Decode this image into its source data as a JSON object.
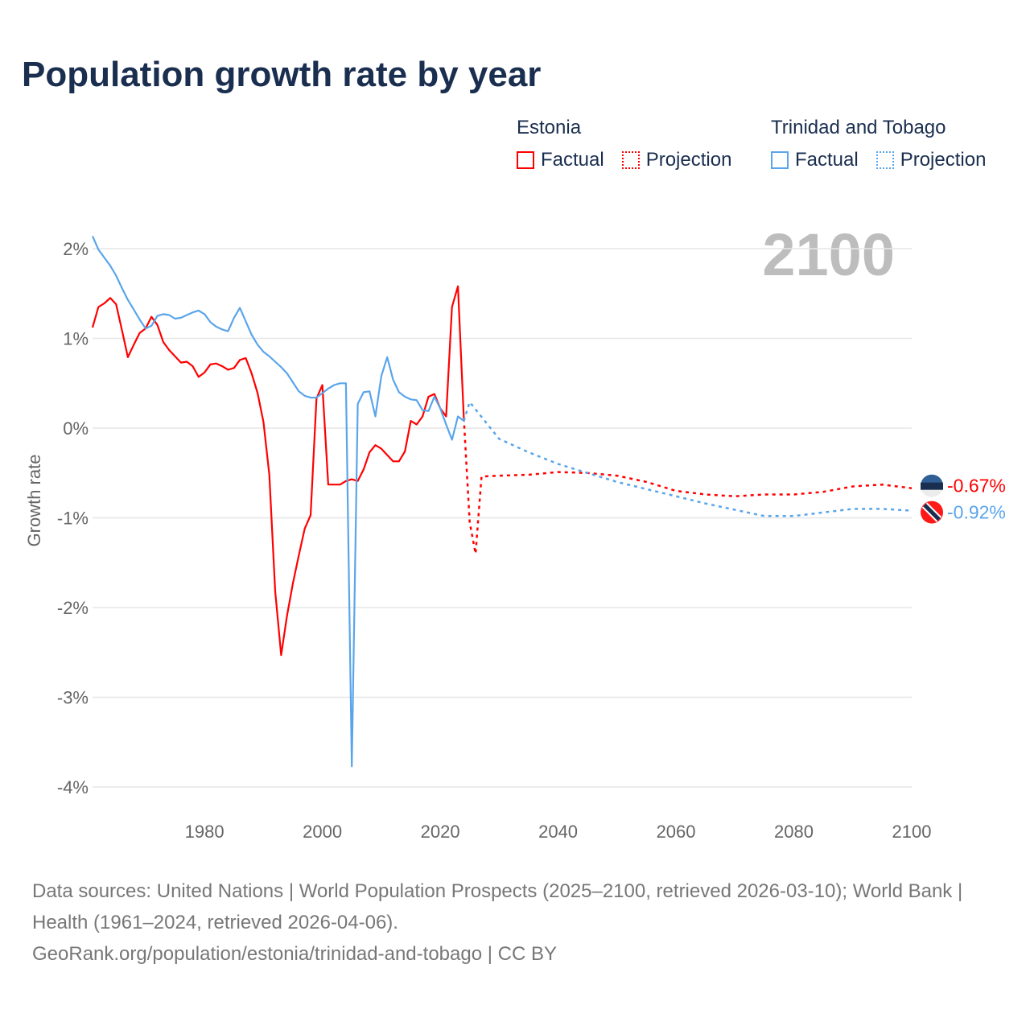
{
  "title": "Population growth rate by year",
  "legend": {
    "groups": [
      {
        "name": "Estonia",
        "factual": "Factual",
        "projection": "Projection",
        "color": "#ff0000"
      },
      {
        "name": "Trinidad and Tobago",
        "factual": "Factual",
        "projection": "Projection",
        "color": "#5aa5ea"
      }
    ]
  },
  "year_label": "2100",
  "source": {
    "line1": "Data sources: United Nations | World Population Prospects (2025–2100, retrieved 2026-03-10); World Bank | Health (1961–2024, retrieved 2026-04-06).",
    "line2": "GeoRank.org/population/estonia/trinidad-and-tobago | CC BY"
  },
  "chart_data": {
    "type": "line",
    "title": "Population growth rate by year",
    "xlabel": "",
    "ylabel": "Growth rate",
    "xlim": [
      1961,
      2100
    ],
    "ylim": [
      -4.3,
      2.3
    ],
    "xticks": [
      1980,
      2000,
      2020,
      2040,
      2060,
      2080,
      2100
    ],
    "xtick_labels": [
      "1980",
      "2000",
      "2020",
      "2040",
      "2060",
      "2080",
      "2100"
    ],
    "yticks": [
      2,
      1,
      0,
      -1,
      -2,
      -3,
      -4
    ],
    "ytick_labels": [
      "2%",
      "1%",
      "0%",
      "-1%",
      "-2%",
      "-3%",
      "-4%"
    ],
    "grid": true,
    "legend_position": "top-right",
    "series": [
      {
        "name": "Estonia",
        "color": "#ff0000",
        "end_label": "-0.67%",
        "factual_start": 1961,
        "factual": [
          1.12,
          1.35,
          1.39,
          1.45,
          1.38,
          1.09,
          0.79,
          0.93,
          1.06,
          1.11,
          1.24,
          1.15,
          0.96,
          0.87,
          0.8,
          0.73,
          0.74,
          0.69,
          0.57,
          0.62,
          0.71,
          0.72,
          0.69,
          0.65,
          0.67,
          0.76,
          0.78,
          0.61,
          0.39,
          0.07,
          -0.52,
          -1.82,
          -2.53,
          -2.09,
          -1.73,
          -1.42,
          -1.12,
          -0.97,
          0.33,
          0.48,
          -0.63,
          -0.63,
          -0.63,
          -0.59,
          -0.57,
          -0.59,
          -0.46,
          -0.27,
          -0.19,
          -0.23,
          -0.3,
          -0.37,
          -0.37,
          -0.26,
          0.08,
          0.04,
          0.13,
          0.35,
          0.38,
          0.22,
          0.13,
          1.35,
          1.58,
          0.11
        ],
        "projection": [
          [
            2024,
            0.11
          ],
          [
            2025,
            -1.05
          ],
          [
            2026,
            -1.4
          ],
          [
            2027,
            -0.54
          ],
          [
            2030,
            -0.53
          ],
          [
            2035,
            -0.52
          ],
          [
            2040,
            -0.49
          ],
          [
            2045,
            -0.5
          ],
          [
            2050,
            -0.53
          ],
          [
            2055,
            -0.6
          ],
          [
            2060,
            -0.7
          ],
          [
            2065,
            -0.74
          ],
          [
            2070,
            -0.76
          ],
          [
            2075,
            -0.74
          ],
          [
            2080,
            -0.74
          ],
          [
            2085,
            -0.71
          ],
          [
            2090,
            -0.65
          ],
          [
            2095,
            -0.63
          ],
          [
            2100,
            -0.67
          ]
        ]
      },
      {
        "name": "Trinidad and Tobago",
        "color": "#5aa5ea",
        "end_label": "-0.92%",
        "factual_start": 1961,
        "factual": [
          2.14,
          1.99,
          1.9,
          1.81,
          1.7,
          1.56,
          1.43,
          1.32,
          1.21,
          1.11,
          1.14,
          1.25,
          1.27,
          1.26,
          1.22,
          1.23,
          1.26,
          1.29,
          1.31,
          1.27,
          1.18,
          1.13,
          1.1,
          1.08,
          1.23,
          1.34,
          1.19,
          1.04,
          0.93,
          0.85,
          0.8,
          0.74,
          0.68,
          0.61,
          0.51,
          0.41,
          0.36,
          0.34,
          0.34,
          0.39,
          0.44,
          0.48,
          0.5,
          0.5,
          -3.77,
          0.27,
          0.4,
          0.41,
          0.13,
          0.58,
          0.79,
          0.54,
          0.4,
          0.35,
          0.32,
          0.31,
          0.2,
          0.19,
          0.35,
          0.22,
          0.04,
          -0.13,
          0.13,
          0.08
        ],
        "projection": [
          [
            2024,
            0.08
          ],
          [
            2025,
            0.29
          ],
          [
            2030,
            -0.12
          ],
          [
            2035,
            -0.27
          ],
          [
            2040,
            -0.4
          ],
          [
            2045,
            -0.5
          ],
          [
            2050,
            -0.6
          ],
          [
            2055,
            -0.68
          ],
          [
            2060,
            -0.76
          ],
          [
            2065,
            -0.84
          ],
          [
            2070,
            -0.91
          ],
          [
            2075,
            -0.98
          ],
          [
            2080,
            -0.98
          ],
          [
            2085,
            -0.94
          ],
          [
            2090,
            -0.9
          ],
          [
            2095,
            -0.9
          ],
          [
            2100,
            -0.92
          ]
        ]
      }
    ]
  }
}
